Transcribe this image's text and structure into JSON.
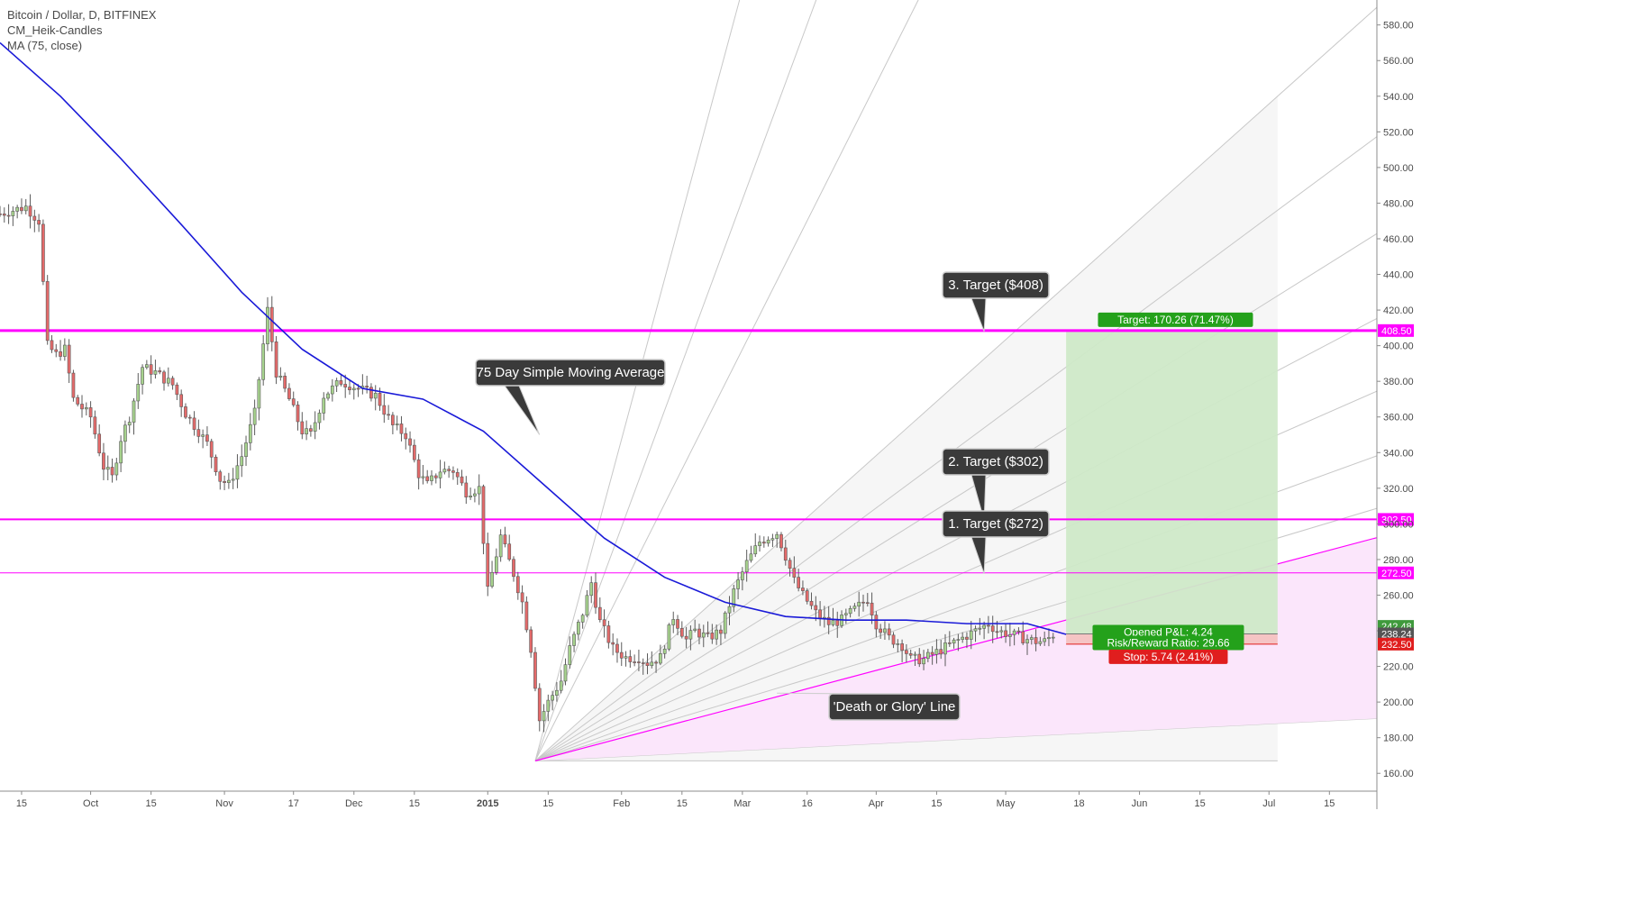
{
  "legend": {
    "title": "Bitcoin / Dollar, D, BITFINEX",
    "indicator1": "CM_Heik-Candles",
    "indicator2": "MA (75, close)"
  },
  "colors": {
    "up_candle": "#a6d28d",
    "down_candle": "#e46a6a",
    "candle_outline": "#5b5b5b",
    "ma_line": "#1a1ad8",
    "magenta": "#ff00ff",
    "fan": "#c8c8c8",
    "target_zone": "#cfe9c8",
    "stop_zone": "#f5c4c4",
    "callout_bg": "#3a3a3a"
  },
  "chart_data": {
    "type": "candlestick",
    "title": "Bitcoin / Dollar, D, BITFINEX",
    "ylim": [
      150,
      594
    ],
    "y_ticks": [
      160,
      180,
      200,
      220,
      240,
      260,
      280,
      300,
      320,
      340,
      360,
      380,
      400,
      420,
      440,
      460,
      480,
      500,
      520,
      540,
      560,
      580
    ],
    "y_tick_labels": [
      "160.00",
      "180.00",
      "200.00",
      "220.00",
      "240.00",
      "260.00",
      "280.00",
      "300.00",
      "320.00",
      "340.00",
      "360.00",
      "380.00",
      "400.00",
      "420.00",
      "440.00",
      "460.00",
      "480.00",
      "500.00",
      "520.00",
      "540.00",
      "560.00",
      "580.00"
    ],
    "x_range": [
      "2014-09-10",
      "2015-07-26"
    ],
    "x_ticks": [
      {
        "date": "2014-09-15",
        "label": "15"
      },
      {
        "date": "2014-10-01",
        "label": "Oct"
      },
      {
        "date": "2014-10-15",
        "label": "15"
      },
      {
        "date": "2014-11-01",
        "label": "Nov"
      },
      {
        "date": "2014-11-17",
        "label": "17"
      },
      {
        "date": "2014-12-01",
        "label": "Dec"
      },
      {
        "date": "2014-12-15",
        "label": "15"
      },
      {
        "date": "2015-01-01",
        "label": "2015"
      },
      {
        "date": "2015-01-15",
        "label": "15"
      },
      {
        "date": "2015-02-01",
        "label": "Feb"
      },
      {
        "date": "2015-02-15",
        "label": "15"
      },
      {
        "date": "2015-03-01",
        "label": "Mar"
      },
      {
        "date": "2015-03-16",
        "label": "16"
      },
      {
        "date": "2015-04-01",
        "label": "Apr"
      },
      {
        "date": "2015-04-15",
        "label": "15"
      },
      {
        "date": "2015-05-01",
        "label": "May"
      },
      {
        "date": "2015-05-18",
        "label": "18"
      },
      {
        "date": "2015-06-01",
        "label": "Jun"
      },
      {
        "date": "2015-06-15",
        "label": "15"
      },
      {
        "date": "2015-07-01",
        "label": "Jul"
      },
      {
        "date": "2015-07-15",
        "label": "15"
      }
    ],
    "start_date": "2014-09-10",
    "close_anchors": [
      [
        0,
        474
      ],
      [
        6,
        478
      ],
      [
        9,
        470
      ],
      [
        11,
        400
      ],
      [
        13,
        395
      ],
      [
        15,
        398
      ],
      [
        17,
        370
      ],
      [
        21,
        360
      ],
      [
        24,
        332
      ],
      [
        26,
        326
      ],
      [
        28,
        348
      ],
      [
        30,
        360
      ],
      [
        33,
        388
      ],
      [
        36,
        385
      ],
      [
        40,
        378
      ],
      [
        43,
        362
      ],
      [
        46,
        352
      ],
      [
        48,
        345
      ],
      [
        51,
        325
      ],
      [
        53,
        322
      ],
      [
        56,
        338
      ],
      [
        59,
        362
      ],
      [
        62,
        420
      ],
      [
        64,
        385
      ],
      [
        67,
        370
      ],
      [
        70,
        352
      ],
      [
        72,
        350
      ],
      [
        75,
        372
      ],
      [
        79,
        380
      ],
      [
        83,
        376
      ],
      [
        87,
        372
      ],
      [
        91,
        355
      ],
      [
        94,
        350
      ],
      [
        97,
        328
      ],
      [
        99,
        322
      ],
      [
        102,
        330
      ],
      [
        105,
        330
      ],
      [
        108,
        318
      ],
      [
        111,
        320
      ],
      [
        113,
        262
      ],
      [
        116,
        293
      ],
      [
        119,
        272
      ],
      [
        121,
        256
      ],
      [
        123,
        230
      ],
      [
        125,
        190
      ],
      [
        127,
        200
      ],
      [
        130,
        212
      ],
      [
        132,
        230
      ],
      [
        135,
        250
      ],
      [
        137,
        267
      ],
      [
        139,
        245
      ],
      [
        142,
        230
      ],
      [
        145,
        225
      ],
      [
        148,
        225
      ],
      [
        150,
        222
      ],
      [
        153,
        225
      ],
      [
        156,
        248
      ],
      [
        159,
        235
      ],
      [
        161,
        240
      ],
      [
        164,
        236
      ],
      [
        167,
        240
      ],
      [
        170,
        262
      ],
      [
        173,
        278
      ],
      [
        176,
        290
      ],
      [
        180,
        295
      ],
      [
        182,
        282
      ],
      [
        184,
        268
      ],
      [
        186,
        260
      ],
      [
        189,
        250
      ],
      [
        192,
        244
      ],
      [
        195,
        246
      ],
      [
        198,
        252
      ],
      [
        201,
        258
      ],
      [
        203,
        244
      ],
      [
        206,
        236
      ],
      [
        209,
        232
      ],
      [
        211,
        224
      ],
      [
        214,
        224
      ],
      [
        217,
        228
      ],
      [
        220,
        232
      ],
      [
        223,
        236
      ],
      [
        226,
        240
      ],
      [
        229,
        244
      ],
      [
        231,
        240
      ],
      [
        234,
        238
      ],
      [
        237,
        236
      ],
      [
        240,
        234
      ],
      [
        242,
        234
      ],
      [
        244,
        238
      ]
    ],
    "ma_75": [
      [
        0,
        570
      ],
      [
        14,
        540
      ],
      [
        28,
        505
      ],
      [
        42,
        468
      ],
      [
        56,
        430
      ],
      [
        70,
        398
      ],
      [
        84,
        376
      ],
      [
        98,
        370
      ],
      [
        112,
        352
      ],
      [
        126,
        322
      ],
      [
        140,
        292
      ],
      [
        154,
        270
      ],
      [
        168,
        256
      ],
      [
        182,
        248
      ],
      [
        196,
        246
      ],
      [
        210,
        246
      ],
      [
        224,
        244
      ],
      [
        238,
        244
      ],
      [
        247,
        238
      ]
    ],
    "horizontal_levels": [
      {
        "value": 408.5,
        "label": "408.50",
        "width": 3
      },
      {
        "value": 302.5,
        "label": "302.50",
        "width": 2
      },
      {
        "value": 272.5,
        "label": "272.50",
        "width": 1
      }
    ],
    "axis_price_labels": [
      {
        "value": 242.48,
        "label": "242.48",
        "bg": "#3f9a3c"
      },
      {
        "value": 238.24,
        "label": "238.24",
        "bg": "#555555"
      },
      {
        "value": 232.5,
        "label": "232.50",
        "bg": "#e01e1e"
      }
    ],
    "fan": {
      "origin_day": 124,
      "origin_price": 167,
      "through_day": 296,
      "through_points": [
        188,
        226,
        246,
        268,
        292,
        318,
        350,
        386,
        428,
        476,
        540
      ],
      "steep_lines": [
        [
          214,
          600
        ],
        [
          190,
          600
        ],
        [
          172,
          600
        ]
      ],
      "magenta_day": 303,
      "magenta_price": 282
    },
    "position": {
      "entry_day": 247,
      "end_day": 296,
      "entry": 238.24,
      "stop": 232.5,
      "target": 408.5,
      "target_label": "Target: 170.26 (71.47%)",
      "stop_label": "Stop: 5.74 (2.41%)",
      "pnl_label": "Opened P&L: 4.24",
      "rr_label": "Risk/Reward Ratio: 29.66"
    },
    "annotations": [
      {
        "text": "3. Target ($408)",
        "anchor_day": 228,
        "anchor_price": 408
      },
      {
        "text": "75 Day Simple Moving Average",
        "anchor_day": 125,
        "anchor_price": 350
      },
      {
        "text": "2. Target ($302)",
        "anchor_day": 228,
        "anchor_price": 302
      },
      {
        "text": "1. Target ($272)",
        "anchor_day": 228,
        "anchor_price": 272
      },
      {
        "text": "'Death or Glory' Line",
        "anchor_day": 180,
        "anchor_price": 205
      }
    ]
  }
}
